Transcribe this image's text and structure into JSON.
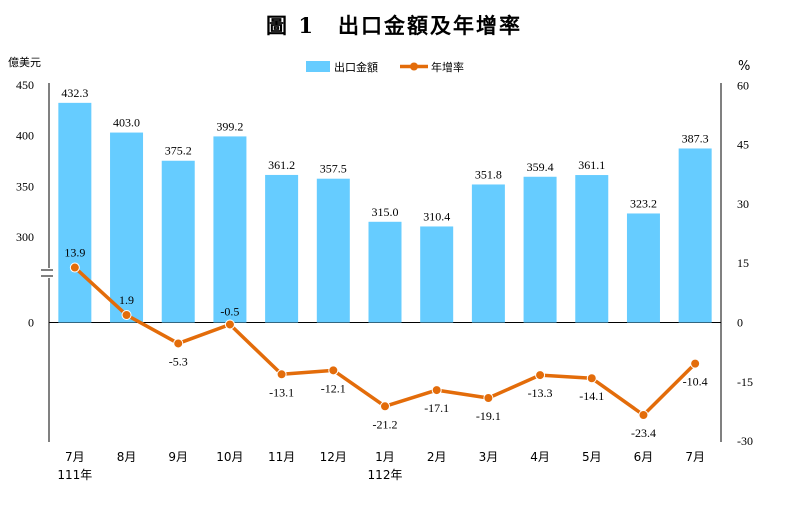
{
  "title": "圖 1　出口金額及年增率",
  "chart_data": {
    "type": "bar+line",
    "categories": [
      "7月",
      "8月",
      "9月",
      "10月",
      "11月",
      "12月",
      "1月",
      "2月",
      "3月",
      "4月",
      "5月",
      "6月",
      "7月"
    ],
    "year_labels": [
      "111年",
      "",
      "",
      "",
      "",
      "",
      "112年",
      "",
      "",
      "",
      "",
      "",
      ""
    ],
    "series": [
      {
        "name": "出口金額",
        "type": "bar",
        "axis": "left",
        "color": "#66ccff",
        "values": [
          432.3,
          403.0,
          375.2,
          399.2,
          361.2,
          357.5,
          315.0,
          310.4,
          351.8,
          359.4,
          361.1,
          323.2,
          387.3
        ],
        "labels": [
          "432.3",
          "403.0",
          "375.2",
          "399.2",
          "361.2",
          "357.5",
          "315.0",
          "310.4",
          "351.8",
          "359.4",
          "361.1",
          "323.2",
          "387.3"
        ]
      },
      {
        "name": "年增率",
        "type": "line",
        "axis": "right",
        "color": "#e36c0a",
        "values": [
          13.9,
          1.9,
          -5.3,
          -0.5,
          -13.1,
          -12.1,
          -21.2,
          -17.1,
          -19.1,
          -13.3,
          -14.1,
          -23.4,
          -10.4
        ],
        "labels": [
          "13.9",
          "1.9",
          "-5.3",
          "-0.5",
          "-13.1",
          "-12.1",
          "-21.2",
          "-17.1",
          "-19.1",
          "-13.3",
          "-14.1",
          "-23.4",
          "-10.4"
        ]
      }
    ],
    "left_axis": {
      "unit": "億美元",
      "ticks": [
        "450",
        "400",
        "350",
        "300",
        "0"
      ],
      "break": true
    },
    "right_axis": {
      "unit": "%",
      "range": [
        -30,
        60
      ],
      "ticks": [
        "60",
        "45",
        "30",
        "15",
        "0",
        "-15",
        "-30"
      ]
    },
    "legend_position": "top-center"
  }
}
